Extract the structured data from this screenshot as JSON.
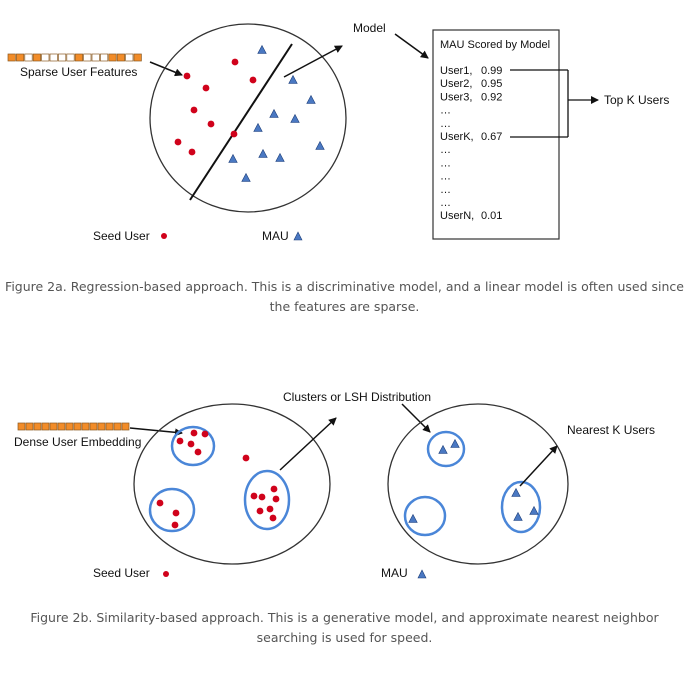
{
  "fig_a": {
    "sparse_label": "Sparse User Features",
    "model_label": "Model",
    "score_box": {
      "title": "MAU Scored by Model",
      "rows": [
        {
          "user": "User1,",
          "score": "0.99"
        },
        {
          "user": "User2,",
          "score": "0.95"
        },
        {
          "user": "User3,",
          "score": "0.92"
        },
        {
          "user": "…",
          "score": ""
        },
        {
          "user": "…",
          "score": ""
        },
        {
          "user": "UserK,",
          "score": "0.67"
        },
        {
          "user": "…",
          "score": ""
        },
        {
          "user": "…",
          "score": ""
        },
        {
          "user": "…",
          "score": ""
        },
        {
          "user": "…",
          "score": ""
        },
        {
          "user": "…",
          "score": ""
        },
        {
          "user": "UserN,",
          "score": "0.01"
        }
      ]
    },
    "topk_label": "Top K Users",
    "legend_seed": "Seed User",
    "legend_mau": "MAU",
    "caption_line1": "Figure 2a. Regression-based approach. This is a discriminative model, and a linear model is often used since",
    "caption_line2": "the features are sparse."
  },
  "fig_b": {
    "dense_label": "Dense User Embedding",
    "clusters_label": "Clusters or LSH Distribution",
    "nearest_label": "Nearest K Users",
    "legend_seed": "Seed User",
    "legend_mau": "MAU",
    "caption_line1": "Figure 2b. Similarity-based approach. This is a generative model, and approximate nearest neighbor",
    "caption_line2": "searching is used for speed."
  },
  "colors": {
    "seed": "#d0021b",
    "mau_fill": "#4a78c2",
    "cluster": "#4a86d8",
    "vector": "#f28c28"
  }
}
